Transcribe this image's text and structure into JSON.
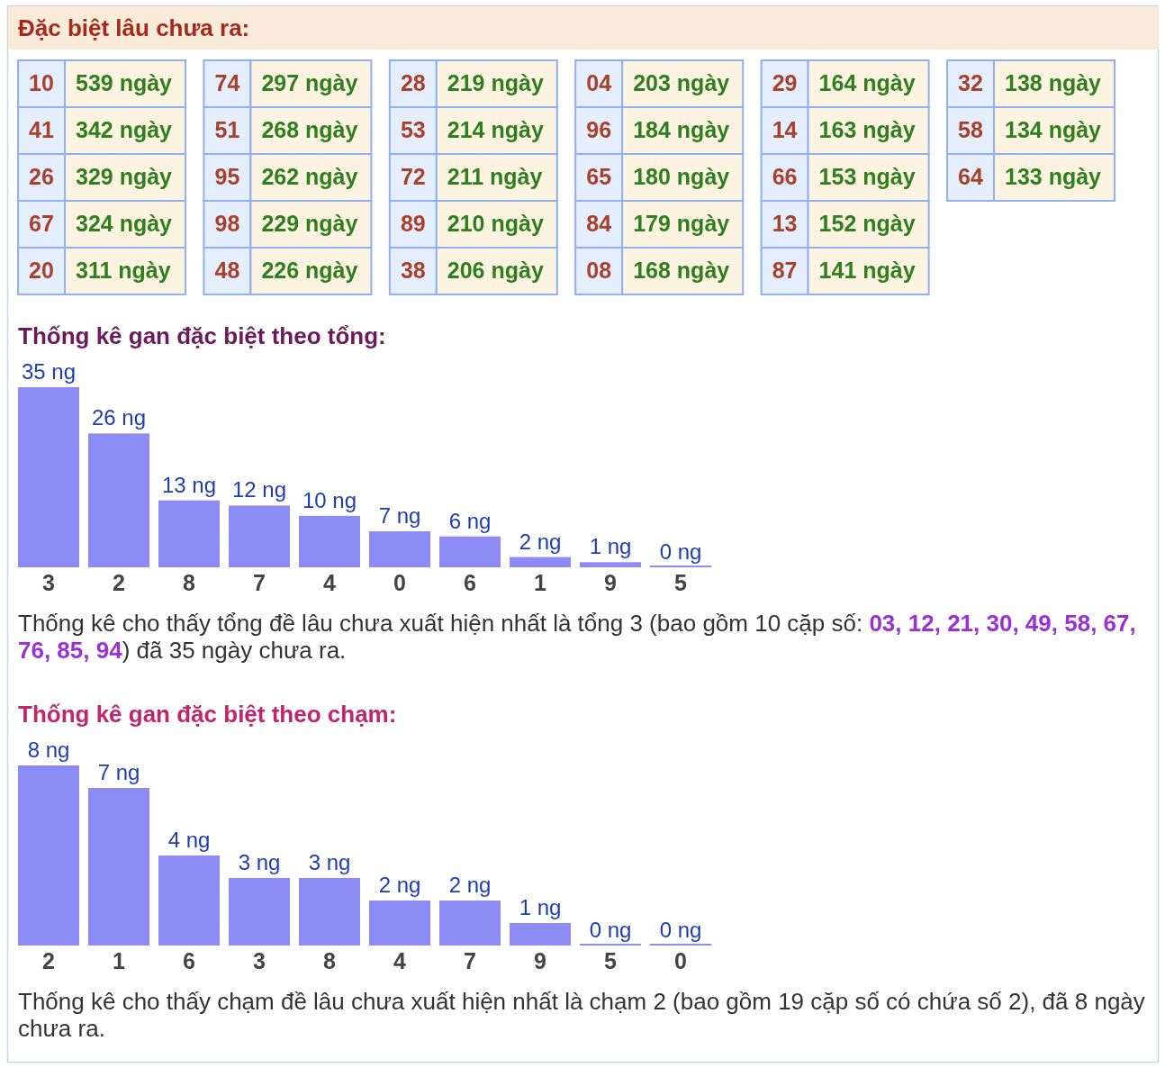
{
  "chart_data": [
    {
      "type": "other",
      "title": "Đặc biệt lâu chưa ra:",
      "categories": [
        "10",
        "41",
        "26",
        "67",
        "20",
        "74",
        "51",
        "95",
        "98",
        "48",
        "28",
        "53",
        "72",
        "89",
        "38",
        "04",
        "96",
        "65",
        "84",
        "08",
        "29",
        "14",
        "66",
        "13",
        "87",
        "32",
        "58",
        "64"
      ],
      "values": [
        539,
        342,
        329,
        324,
        311,
        297,
        268,
        262,
        229,
        226,
        219,
        214,
        211,
        210,
        206,
        203,
        184,
        180,
        179,
        168,
        164,
        163,
        153,
        152,
        141,
        138,
        134,
        133
      ],
      "value_labels": [
        "539 ngày",
        "342 ngày",
        "329 ngày",
        "324 ngày",
        "311 ngày",
        "297 ngày",
        "268 ngày",
        "262 ngày",
        "229 ngày",
        "226 ngày",
        "219 ngày",
        "214 ngày",
        "211 ngày",
        "210 ngày",
        "206 ngày",
        "203 ngày",
        "184 ngày",
        "180 ngày",
        "179 ngày",
        "168 ngày",
        "164 ngày",
        "163 ngày",
        "153 ngày",
        "152 ngày",
        "141 ngày",
        "138 ngày",
        "134 ngày",
        "133 ngày"
      ]
    },
    {
      "type": "bar",
      "title": "Thống kê gan đặc biệt theo tổng:",
      "categories": [
        "3",
        "2",
        "8",
        "7",
        "4",
        "0",
        "6",
        "1",
        "9",
        "5"
      ],
      "values": [
        35,
        26,
        13,
        12,
        10,
        7,
        6,
        2,
        1,
        0
      ],
      "value_labels": [
        "35 ng",
        "26 ng",
        "13 ng",
        "12 ng",
        "10 ng",
        "7 ng",
        "6 ng",
        "2 ng",
        "1 ng",
        "0 ng"
      ],
      "color": "#8c8cf4",
      "annotations": [
        "Thống kê cho thấy tổng đề lâu chưa xuất hiện nhất là tổng 3 (bao gồm 10 cặp số: 03, 12, 21, 30, 49, 58, 67, 76, 85, 94) đã 35 ngày chưa ra."
      ]
    },
    {
      "type": "bar",
      "title": "Thống kê gan đặc biệt theo chạm:",
      "categories": [
        "2",
        "1",
        "6",
        "3",
        "8",
        "4",
        "7",
        "9",
        "5",
        "0"
      ],
      "values": [
        8,
        7,
        4,
        3,
        3,
        2,
        2,
        1,
        0,
        0
      ],
      "value_labels": [
        "8 ng",
        "7 ng",
        "4 ng",
        "3 ng",
        "3 ng",
        "2 ng",
        "2 ng",
        "1 ng",
        "0 ng",
        "0 ng"
      ],
      "color": "#8c8cf4",
      "annotations": [
        "Thống kê cho thấy chạm đề lâu chưa xuất hiện nhất là chạm 2 (bao gồm 19 cặp số có chứa số 2), đã 8 ngày chưa ra."
      ]
    }
  ]
}
